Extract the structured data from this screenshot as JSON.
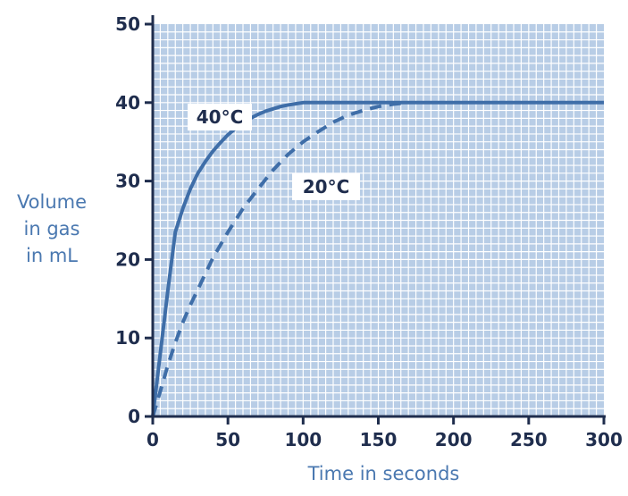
{
  "chart_data": {
    "type": "line",
    "xlabel": "Time in seconds",
    "ylabel": [
      "Volume",
      "in gas",
      "in mL"
    ],
    "xlim": [
      0,
      300
    ],
    "ylim": [
      0,
      50
    ],
    "xticks": [
      0,
      50,
      100,
      150,
      200,
      250,
      300
    ],
    "yticks": [
      0,
      10,
      20,
      30,
      40,
      50
    ],
    "grid": true,
    "colors": {
      "background": "#b8cde6",
      "grid": "#ffffff",
      "line": "#3f6ea8",
      "axis": "#1f2d4d",
      "axis_title": "#4a78b0"
    },
    "series": [
      {
        "name": "40°C",
        "style": "solid",
        "x": [
          0,
          5,
          10,
          15,
          20,
          25,
          30,
          35,
          40,
          45,
          50,
          55,
          60,
          65,
          70,
          75,
          80,
          85,
          90,
          95,
          100,
          110,
          120,
          130,
          140,
          150,
          160,
          170,
          180,
          200,
          220,
          240,
          260,
          280,
          300
        ],
        "y": [
          0,
          8,
          16,
          23.5,
          26.5,
          29,
          31,
          32.5,
          33.8,
          34.9,
          35.9,
          36.7,
          37.4,
          38,
          38.5,
          38.9,
          39.2,
          39.5,
          39.7,
          39.85,
          40,
          40,
          40,
          40,
          40,
          40,
          40,
          40,
          40,
          40,
          40,
          40,
          40,
          40,
          40
        ]
      },
      {
        "name": "20°C",
        "style": "dashed",
        "x": [
          0,
          5,
          10,
          15,
          20,
          25,
          30,
          40,
          50,
          60,
          70,
          80,
          90,
          100,
          110,
          120,
          130,
          140,
          150,
          160,
          170
        ],
        "y": [
          0,
          3.2,
          6.5,
          9.4,
          12,
          14.2,
          16.2,
          20.2,
          23.5,
          26.5,
          29,
          31.4,
          33.4,
          35,
          36.3,
          37.5,
          38.4,
          39,
          39.5,
          39.8,
          40
        ]
      }
    ]
  }
}
